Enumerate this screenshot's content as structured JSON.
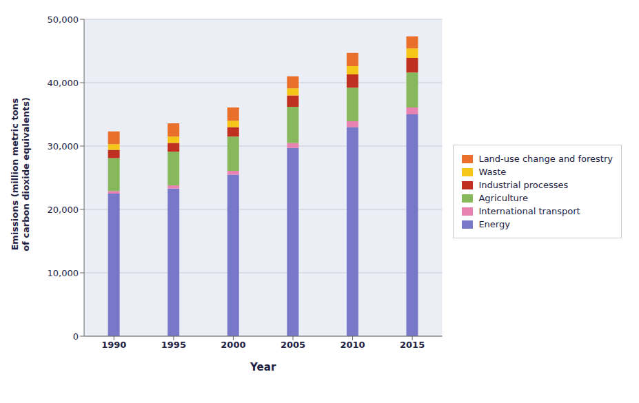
{
  "chart_data": {
    "type": "bar",
    "stacked": true,
    "xlabel": "Year",
    "ylabel": "Emissions (million metric tons\nof carbon dioxide equivalents)",
    "categories": [
      "1990",
      "1995",
      "2000",
      "2005",
      "2010",
      "2015"
    ],
    "series": [
      {
        "name": "Energy",
        "color": "#7878c8",
        "values": [
          22500,
          23300,
          25500,
          29700,
          33000,
          35000
        ]
      },
      {
        "name": "International transport",
        "color": "#e882b0",
        "values": [
          400,
          500,
          600,
          800,
          900,
          1100
        ]
      },
      {
        "name": "Agriculture",
        "color": "#88b85c",
        "values": [
          5200,
          5300,
          5400,
          5700,
          5300,
          5500
        ]
      },
      {
        "name": "Industrial processes",
        "color": "#c03020",
        "values": [
          1300,
          1400,
          1500,
          1800,
          2100,
          2300
        ]
      },
      {
        "name": "Waste",
        "color": "#f5c518",
        "values": [
          900,
          1000,
          1000,
          1100,
          1300,
          1500
        ]
      },
      {
        "name": "Land-use change and forestry",
        "color": "#e8702a",
        "values": [
          2000,
          2100,
          2100,
          1900,
          2100,
          1900
        ]
      }
    ],
    "ylim": [
      0,
      50000
    ],
    "yticks": [
      0,
      {
        "value": 10000,
        "label": "10,000"
      },
      {
        "value": 20000,
        "label": "20,000"
      },
      {
        "value": 30000,
        "label": "30,000"
      },
      {
        "value": 40000,
        "label": "40,000"
      },
      {
        "value": 50000,
        "label": "50,000"
      }
    ],
    "grid": true,
    "legend": "right"
  }
}
